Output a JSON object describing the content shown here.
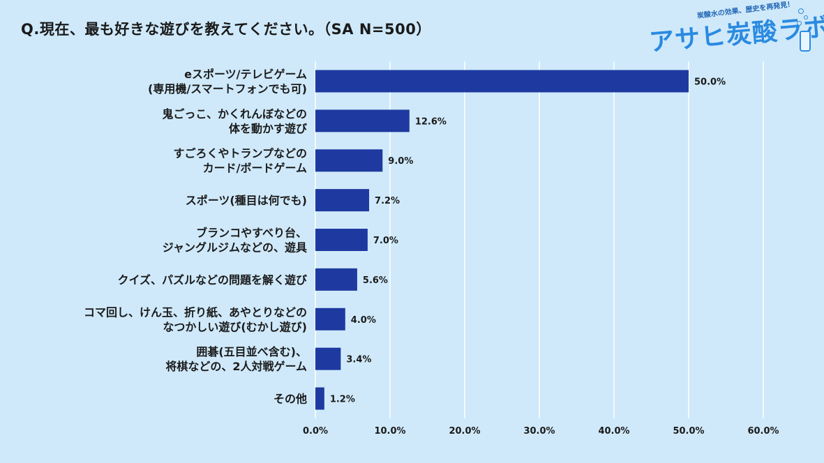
{
  "question": "Q.現在、最も好きな遊びを教えてください。（SA N=500）",
  "logo": {
    "tagline": "炭酸水の効果、歴史を再発見！",
    "name": "アサヒ炭酸ラボ"
  },
  "colors": {
    "bar": "#1e3aa0",
    "background": "#cfe9fa",
    "grid": "#ffffff"
  },
  "chart_data": {
    "type": "bar",
    "orientation": "horizontal",
    "categories": [
      [
        "eスポーツ/テレビゲーム",
        "(専用機/スマートフォンでも可)"
      ],
      [
        "鬼ごっこ、かくれんぼなどの",
        "体を動かす遊び"
      ],
      [
        "すごろくやトランプなどの",
        "カード/ボードゲーム"
      ],
      [
        "スポーツ(種目は何でも)"
      ],
      [
        "ブランコやすべり台、",
        "ジャングルジムなどの、遊具"
      ],
      [
        "クイズ、パズルなどの問題を解く遊び"
      ],
      [
        "コマ回し、けん玉、折り紙、あやとりなどの",
        "なつかしい遊び(むかし遊び)"
      ],
      [
        "囲碁(五目並べ含む)、",
        "将棋などの、2人対戦ゲーム"
      ],
      [
        "その他"
      ]
    ],
    "values": [
      50.0,
      12.6,
      9.0,
      7.2,
      7.0,
      5.6,
      4.0,
      3.4,
      1.2
    ],
    "value_labels": [
      "50.0%",
      "12.6%",
      "9.0%",
      "7.2%",
      "7.0%",
      "5.6%",
      "4.0%",
      "3.4%",
      "1.2%"
    ],
    "xlim": [
      0,
      60
    ],
    "xticks": [
      0,
      10,
      20,
      30,
      40,
      50,
      60
    ],
    "xtick_labels": [
      "0.0%",
      "10.0%",
      "20.0%",
      "30.0%",
      "40.0%",
      "50.0%",
      "60.0%"
    ],
    "grid": true,
    "legend": "none"
  }
}
